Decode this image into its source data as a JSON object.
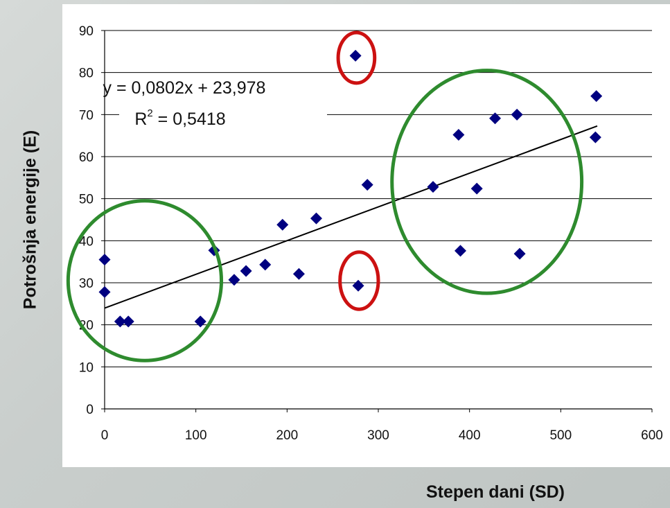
{
  "chart_data": {
    "type": "scatter",
    "xlabel": "Stepen dani (SD)",
    "ylabel": "Potrošnja energije (E)",
    "xlim": [
      0,
      600
    ],
    "ylim": [
      0,
      90
    ],
    "xticks": [
      "0",
      "100",
      "200",
      "300",
      "400",
      "500",
      "600"
    ],
    "yticks": [
      "0",
      "10",
      "20",
      "30",
      "40",
      "50",
      "60",
      "70",
      "80",
      "90"
    ],
    "grid": "horizontal",
    "marker": "diamond",
    "marker_color": "#000080",
    "trendline_color": "#000000",
    "series": [
      {
        "x": [
          0,
          0,
          17,
          26,
          105,
          120,
          142,
          155,
          176,
          195,
          213,
          232,
          275,
          278,
          288,
          360,
          388,
          390,
          408,
          428,
          452,
          455,
          538,
          539
        ],
        "y": [
          35.5,
          27.8,
          20.8,
          20.8,
          20.8,
          37.7,
          30.7,
          32.8,
          34.3,
          43.8,
          32.1,
          45.3,
          84,
          29.3,
          53.3,
          52.8,
          65.2,
          37.6,
          52.4,
          69.1,
          70,
          36.9,
          64.6,
          74.4
        ]
      }
    ],
    "trendline": {
      "slope": 0.0802,
      "intercept": 23.978,
      "x_range": [
        0,
        540
      ],
      "equation": "y = 0,0802x + 23,978",
      "r2_label": "R",
      "r2_sup": "2",
      "r2_value": " = 0,5418"
    },
    "annotations": {
      "ellipses": [
        {
          "color": "#cc1111",
          "center": [
            276,
            83.5
          ],
          "radius": [
            20,
            6
          ]
        },
        {
          "color": "#cc1111",
          "center": [
            279,
            30.5
          ],
          "radius": [
            21,
            6.8
          ]
        },
        {
          "color": "#2e8b2e",
          "center": [
            44,
            30.5
          ],
          "radius": [
            84,
            19
          ]
        },
        {
          "color": "#2e8b2e",
          "center": [
            419,
            54
          ],
          "radius": [
            104,
            26.5
          ]
        }
      ]
    }
  }
}
